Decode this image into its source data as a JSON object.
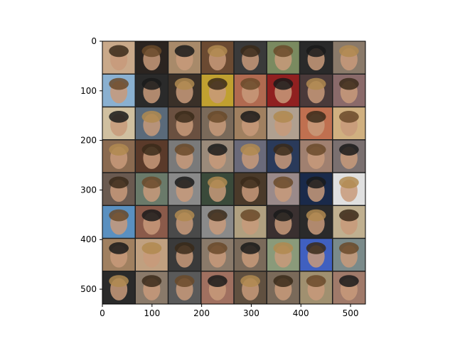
{
  "figure": {
    "image_grid": {
      "description_free": true,
      "rows": 8,
      "cols": 8,
      "tiles": [
        [
          "#c9a98a",
          "#2b2420",
          "#a88a6a",
          "#6b4a32",
          "#3a3a3a",
          "#7a8a60",
          "#2a2a2a",
          "#8a7a6a"
        ],
        [
          "#8ab0d0",
          "#2a2a2a",
          "#3a3028",
          "#c0a030",
          "#b06a50",
          "#902020",
          "#4a3a3a",
          "#8a6a6a"
        ],
        [
          "#d0c0a0",
          "#5a6a7a",
          "#6a5040",
          "#7a6a5a",
          "#a08060",
          "#b0a090",
          "#c07050",
          "#d0b080"
        ],
        [
          "#8a6a50",
          "#5a3a2a",
          "#7a7a7a",
          "#9a8a7a",
          "#6a6a7a",
          "#2a3a5a",
          "#a08070",
          "#7a7070"
        ],
        [
          "#6a5a50",
          "#6a7a6a",
          "#8a8a8a",
          "#3a4a3a",
          "#4a3a2a",
          "#9a8a8a",
          "#1a2a4a",
          "#e0e0e0"
        ],
        [
          "#5a90c0",
          "#8a5a4a",
          "#4a4a4a",
          "#8a8a8a",
          "#b0a080",
          "#3a3030",
          "#2a2a2a",
          "#c0b090"
        ],
        [
          "#a08060",
          "#c0a080",
          "#3a3a3a",
          "#8a7a6a",
          "#7a6a5a",
          "#8a9a7a",
          "#4060c0",
          "#7a8a8a"
        ],
        [
          "#2a2a2a",
          "#8a7a6a",
          "#5a5a5a",
          "#a07060",
          "#605040",
          "#7a6a5a",
          "#a09070",
          "#a07a6a"
        ]
      ]
    },
    "axes": {
      "x_ticks": [
        "0",
        "100",
        "200",
        "300",
        "400",
        "500"
      ],
      "y_ticks": [
        "0",
        "100",
        "200",
        "300",
        "400",
        "500"
      ],
      "x_tick_values": [
        0,
        100,
        200,
        300,
        400,
        500
      ],
      "y_tick_values": [
        0,
        100,
        200,
        300,
        400,
        500
      ],
      "xlim": [
        0,
        530
      ],
      "ylim": [
        530,
        0
      ]
    }
  }
}
